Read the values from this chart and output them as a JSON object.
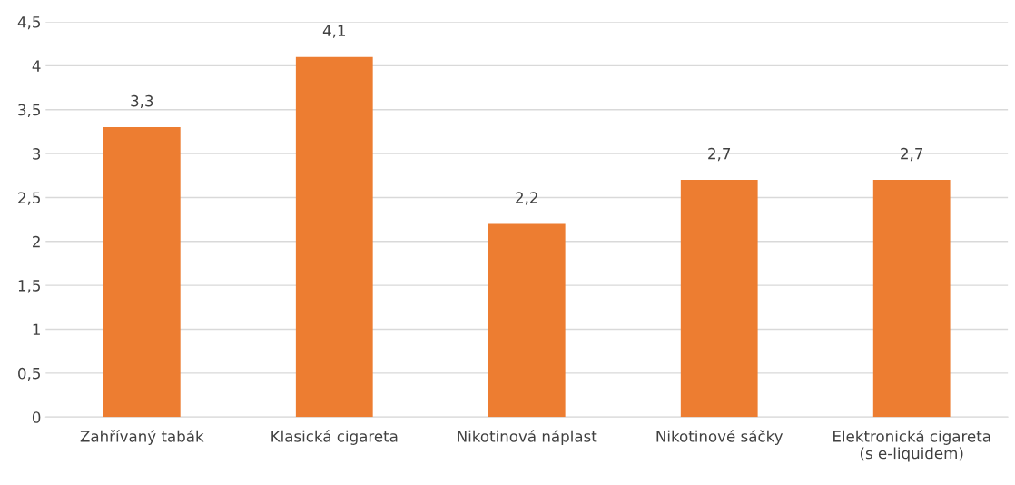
{
  "chart_data": {
    "type": "bar",
    "categories": [
      "Zahřívaný tabák",
      "Klasická cigareta",
      "Nikotinová náplast",
      "Nikotinové sáčky",
      "Elektronická cigareta\n(s e-liquidem)"
    ],
    "values": [
      3.3,
      4.1,
      2.2,
      2.7,
      2.7
    ],
    "value_labels": [
      "3,3",
      "4,1",
      "2,2",
      "2,7",
      "2,7"
    ],
    "color": "#ed7d31",
    "ylim": [
      0,
      4.5
    ],
    "yticks": [
      0,
      {
        "value": 0.5,
        "label": "0,5"
      },
      1,
      {
        "value": 1.5,
        "label": "1,5"
      },
      2,
      {
        "value": 2.5,
        "label": "2,5"
      },
      3,
      {
        "value": 3.5,
        "label": "3,5"
      },
      4,
      {
        "value": 4.5,
        "label": "4,5"
      }
    ],
    "grid": "y",
    "legend": false
  }
}
